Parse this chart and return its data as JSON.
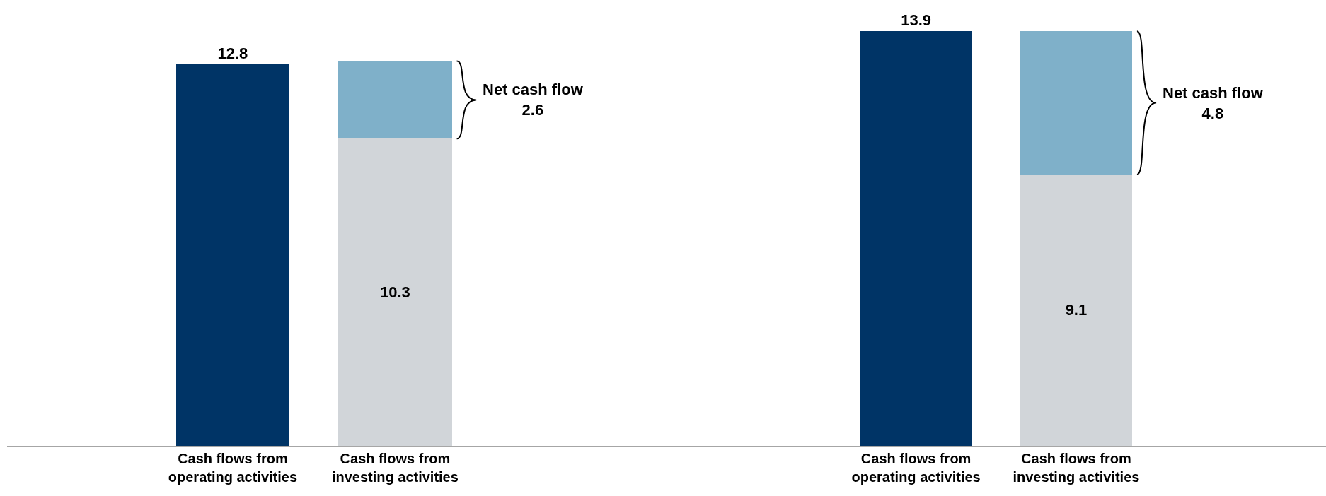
{
  "chart_data": [
    {
      "type": "bar",
      "stacked": true,
      "tick_labels": "x",
      "categories": [
        "Cash flows from operating activities",
        "Cash flows from investing activities"
      ],
      "series": [
        {
          "color": "#003466",
          "values": [
            12.8,
            null
          ],
          "value_labels": [
            "12.8",
            null
          ]
        },
        {
          "color": "#d1d5d9",
          "values": [
            null,
            10.3
          ],
          "value_labels": [
            null,
            "10.3"
          ]
        },
        {
          "color": "#7fb0c9",
          "values": [
            null,
            2.6
          ],
          "value_labels": [
            null,
            null
          ]
        }
      ],
      "annotations": [
        "Net cash flow\n2.6"
      ]
    },
    {
      "type": "bar",
      "stacked": true,
      "tick_labels": "x",
      "categories": [
        "Cash flows from operating activities",
        "Cash flows from investing activities"
      ],
      "series": [
        {
          "color": "#003466",
          "values": [
            13.9,
            null
          ],
          "value_labels": [
            "13.9",
            null
          ]
        },
        {
          "color": "#d1d5d9",
          "values": [
            null,
            9.1
          ],
          "value_labels": [
            null,
            "9.1"
          ]
        },
        {
          "color": "#7fb0c9",
          "values": [
            null,
            4.8
          ],
          "value_labels": [
            null,
            null
          ]
        }
      ],
      "annotations": [
        "Net cash flow\n4.8"
      ]
    }
  ]
}
